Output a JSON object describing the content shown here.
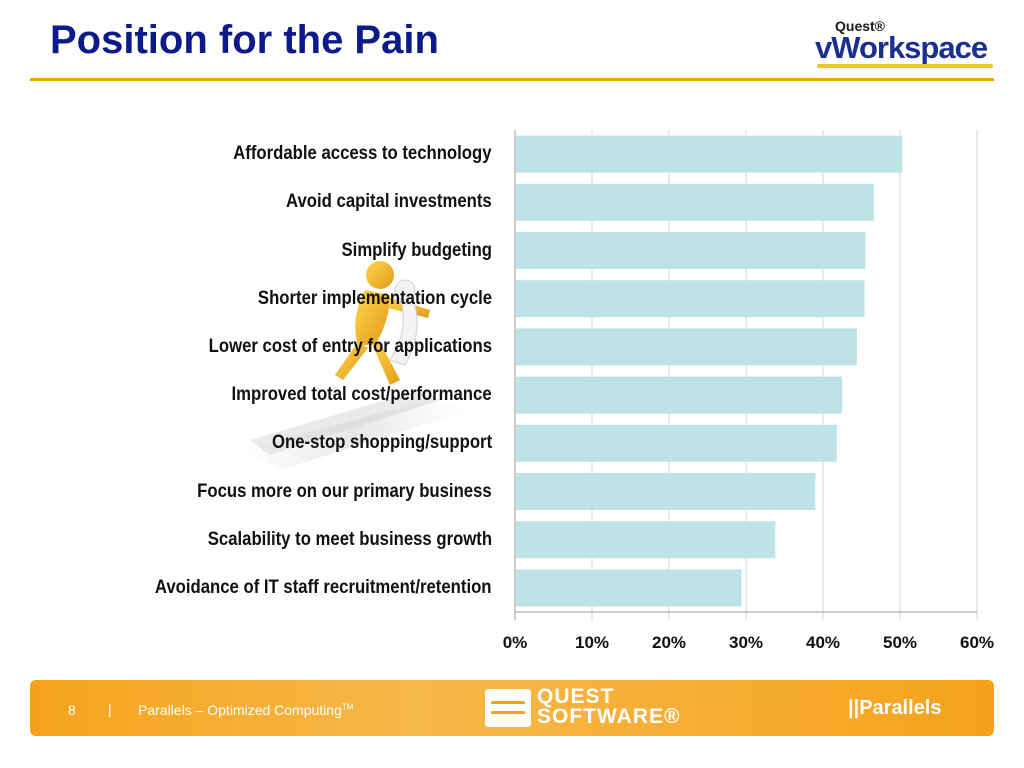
{
  "header": {
    "title": "Position for the Pain",
    "logo_small": "Quest®",
    "logo_big": "vWorkspace"
  },
  "chart_data": {
    "type": "bar",
    "orientation": "horizontal",
    "categories": [
      "Affordable access to technology",
      "Avoid capital investments",
      "Simplify budgeting",
      "Shorter implementation cycle",
      "Lower cost of entry for applications",
      "Improved total cost/performance",
      "One-stop shopping/support",
      "Focus more on our primary business",
      "Scalability to meet business growth",
      "Avoidance of IT staff recruitment/retention"
    ],
    "values": [
      50.3,
      46.6,
      45.5,
      45.4,
      44.4,
      42.5,
      41.8,
      39.0,
      33.8,
      29.4
    ],
    "xlim": [
      0,
      60
    ],
    "ticks": [
      0,
      10,
      20,
      30,
      40,
      50,
      60
    ],
    "tick_labels": [
      "0%",
      "10%",
      "20%",
      "30%",
      "40%",
      "50%",
      "60%"
    ],
    "grid": true,
    "bar_color": "#bde3e6",
    "title": "",
    "xlabel": "",
    "ylabel": ""
  },
  "footer": {
    "page_number": "8",
    "separator": "|",
    "company": "Parallels – Optimized Computing",
    "trademark": "TM",
    "quest_line1": "QUEST",
    "quest_line2": "SOFTWARE®",
    "parallels_logo": "||Parallels"
  },
  "colors": {
    "title": "#0d1a8c",
    "accent": "#f0a500",
    "footer": "#f5a21a"
  }
}
